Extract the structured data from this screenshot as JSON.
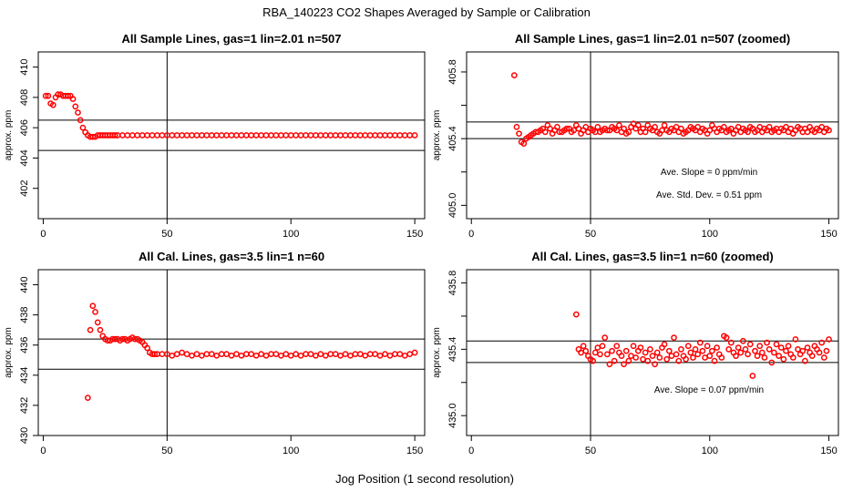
{
  "figure": {
    "title": "RBA_140223  CO2 Shapes Averaged by Sample or Calibration",
    "xlabel": "Jog Position (1 second resolution)"
  },
  "colors": {
    "points": "#ff0000",
    "axes": "#000000",
    "background": "#ffffff"
  },
  "chart_data": [
    {
      "type": "scatter",
      "title": "All Sample Lines, gas=1 lin=2.01 n=507",
      "ylabel": "approx. ppm",
      "xlim": [
        -2,
        154
      ],
      "ylim": [
        400,
        411
      ],
      "xticks": [
        0,
        50,
        100,
        150
      ],
      "yticks": [
        402,
        404,
        406,
        408,
        410
      ],
      "vline": 50,
      "hlines": [
        404.5,
        406.5
      ],
      "series": [
        {
          "x": [
            1,
            2,
            3,
            4,
            5,
            6,
            7,
            8,
            9,
            10,
            11,
            12,
            13,
            14,
            15,
            16,
            17,
            18,
            19,
            20,
            21,
            22,
            23,
            24,
            25,
            26,
            27,
            28,
            29,
            30,
            32,
            34,
            36,
            38,
            40,
            42,
            44,
            46,
            48,
            50,
            52,
            54,
            56,
            58,
            60,
            62,
            64,
            66,
            68,
            70,
            72,
            74,
            76,
            78,
            80,
            82,
            84,
            86,
            88,
            90,
            92,
            94,
            96,
            98,
            100,
            102,
            104,
            106,
            108,
            110,
            112,
            114,
            116,
            118,
            120,
            122,
            124,
            126,
            128,
            130,
            132,
            134,
            136,
            138,
            140,
            142,
            144,
            146,
            148,
            150
          ],
          "y": [
            408.1,
            408.1,
            407.6,
            407.5,
            408,
            408.2,
            408.2,
            408.1,
            408.1,
            408.1,
            408.1,
            407.9,
            407.4,
            407,
            406.5,
            406,
            405.7,
            405.5,
            405.4,
            405.4,
            405.4,
            405.5,
            405.5,
            405.5,
            405.5,
            405.5,
            405.5,
            405.5,
            405.5,
            405.5,
            405.5,
            405.5,
            405.5,
            405.5,
            405.5,
            405.5,
            405.5,
            405.5,
            405.5,
            405.5,
            405.5,
            405.5,
            405.5,
            405.5,
            405.5,
            405.5,
            405.5,
            405.5,
            405.5,
            405.5,
            405.5,
            405.5,
            405.5,
            405.5,
            405.5,
            405.5,
            405.5,
            405.5,
            405.5,
            405.5,
            405.5,
            405.5,
            405.5,
            405.5,
            405.5,
            405.5,
            405.5,
            405.5,
            405.5,
            405.5,
            405.5,
            405.5,
            405.5,
            405.5,
            405.5,
            405.5,
            405.5,
            405.5,
            405.5,
            405.5,
            405.5,
            405.5,
            405.5,
            405.5,
            405.5,
            405.5,
            405.5,
            405.5,
            405.5,
            405.5
          ]
        }
      ],
      "annotations": []
    },
    {
      "type": "scatter",
      "title": "All Sample Lines, gas=1 lin=2.01 n=507 (zoomed)",
      "ylabel": "approx. ppm",
      "xlim": [
        -2,
        154
      ],
      "ylim": [
        404.92,
        405.92
      ],
      "xticks": [
        0,
        50,
        100,
        150
      ],
      "yticks": [
        405.0,
        405.4,
        405.8
      ],
      "hidden_yticks": [
        405.2,
        405.6
      ],
      "vline": 50,
      "hlines": [
        405.4,
        405.5
      ],
      "series": [
        {
          "x": [
            18,
            19,
            20,
            21,
            22,
            23,
            24,
            25,
            26,
            27,
            28,
            29,
            30,
            31,
            32,
            33,
            34,
            35,
            36,
            37,
            38,
            39,
            40,
            41,
            42,
            43,
            44,
            45,
            46,
            47,
            48,
            49,
            50,
            51,
            52,
            53,
            54,
            55,
            56,
            57,
            58,
            59,
            60,
            61,
            62,
            63,
            64,
            65,
            66,
            67,
            68,
            69,
            70,
            71,
            72,
            73,
            74,
            75,
            76,
            77,
            78,
            79,
            80,
            81,
            82,
            83,
            84,
            85,
            86,
            87,
            88,
            89,
            90,
            91,
            92,
            93,
            94,
            95,
            96,
            97,
            98,
            99,
            100,
            101,
            102,
            103,
            104,
            105,
            106,
            107,
            108,
            109,
            110,
            111,
            112,
            113,
            114,
            115,
            116,
            117,
            118,
            119,
            120,
            121,
            122,
            123,
            124,
            125,
            126,
            127,
            128,
            129,
            130,
            131,
            132,
            133,
            134,
            135,
            136,
            137,
            138,
            139,
            140,
            141,
            142,
            143,
            144,
            145,
            146,
            147,
            148,
            149,
            150
          ],
          "y": [
            405.78,
            405.47,
            405.43,
            405.38,
            405.37,
            405.4,
            405.41,
            405.42,
            405.43,
            405.44,
            405.44,
            405.45,
            405.46,
            405.44,
            405.48,
            405.46,
            405.43,
            405.45,
            405.47,
            405.44,
            405.44,
            405.45,
            405.46,
            405.46,
            405.44,
            405.45,
            405.48,
            405.46,
            405.43,
            405.45,
            405.47,
            405.44,
            405.46,
            405.45,
            405.44,
            405.47,
            405.44,
            405.45,
            405.46,
            405.45,
            405.45,
            405.47,
            405.46,
            405.45,
            405.48,
            405.44,
            405.46,
            405.43,
            405.44,
            405.47,
            405.49,
            405.46,
            405.48,
            405.44,
            405.46,
            405.44,
            405.48,
            405.46,
            405.45,
            405.47,
            405.44,
            405.43,
            405.45,
            405.48,
            405.45,
            405.44,
            405.46,
            405.45,
            405.47,
            405.44,
            405.46,
            405.43,
            405.44,
            405.45,
            405.47,
            405.46,
            405.45,
            405.47,
            405.44,
            405.46,
            405.45,
            405.43,
            405.45,
            405.48,
            405.46,
            405.44,
            405.46,
            405.45,
            405.47,
            405.44,
            405.45,
            405.46,
            405.43,
            405.45,
            405.47,
            405.44,
            405.46,
            405.45,
            405.44,
            405.47,
            405.46,
            405.44,
            405.45,
            405.47,
            405.44,
            405.46,
            405.45,
            405.47,
            405.44,
            405.45,
            405.46,
            405.44,
            405.46,
            405.45,
            405.47,
            405.44,
            405.46,
            405.43,
            405.45,
            405.47,
            405.46,
            405.44,
            405.46,
            405.44,
            405.47,
            405.45,
            405.44,
            405.46,
            405.45,
            405.47,
            405.44,
            405.46,
            405.45
          ]
        }
      ],
      "annotations": [
        "Ave. Slope =  0  ppm/min",
        "Ave. Std. Dev. =  0.51  ppm"
      ]
    },
    {
      "type": "scatter",
      "title": "All Cal. Lines, gas=3.5 lin=1 n=60",
      "ylabel": "approx. ppm",
      "xlim": [
        -2,
        154
      ],
      "ylim": [
        430,
        441
      ],
      "xticks": [
        0,
        50,
        100,
        150
      ],
      "yticks": [
        430,
        432,
        434,
        436,
        438,
        440
      ],
      "vline": 50,
      "hlines": [
        434.4,
        436.4
      ],
      "series": [
        {
          "x": [
            18,
            19,
            20,
            21,
            22,
            23,
            24,
            25,
            26,
            27,
            28,
            29,
            30,
            31,
            32,
            33,
            34,
            35,
            36,
            37,
            38,
            39,
            40,
            41,
            42,
            43,
            44,
            45,
            46,
            48,
            50,
            52,
            54,
            56,
            58,
            60,
            62,
            64,
            66,
            68,
            70,
            72,
            74,
            76,
            78,
            80,
            82,
            84,
            86,
            88,
            90,
            92,
            94,
            96,
            98,
            100,
            102,
            104,
            106,
            108,
            110,
            112,
            114,
            116,
            118,
            120,
            122,
            124,
            126,
            128,
            130,
            132,
            134,
            136,
            138,
            140,
            142,
            144,
            146,
            148,
            150
          ],
          "y": [
            432.5,
            437,
            438.6,
            438.2,
            437.5,
            437,
            436.6,
            436.4,
            436.3,
            436.3,
            436.4,
            436.4,
            436.4,
            436.3,
            436.4,
            436.4,
            436.3,
            436.4,
            436.5,
            436.4,
            436.4,
            436.3,
            436.2,
            436,
            435.8,
            435.5,
            435.4,
            435.4,
            435.4,
            435.4,
            435.4,
            435.3,
            435.4,
            435.5,
            435.4,
            435.3,
            435.4,
            435.3,
            435.4,
            435.4,
            435.3,
            435.4,
            435.4,
            435.3,
            435.4,
            435.3,
            435.4,
            435.4,
            435.3,
            435.4,
            435.3,
            435.4,
            435.4,
            435.3,
            435.4,
            435.3,
            435.4,
            435.3,
            435.4,
            435.4,
            435.3,
            435.4,
            435.3,
            435.4,
            435.4,
            435.3,
            435.4,
            435.3,
            435.4,
            435.4,
            435.3,
            435.4,
            435.4,
            435.3,
            435.4,
            435.3,
            435.4,
            435.4,
            435.3,
            435.4,
            435.5
          ]
        }
      ],
      "annotations": []
    },
    {
      "type": "scatter",
      "title": "All Cal. Lines, gas=3.5 lin=1 n=60 (zoomed)",
      "ylabel": "approx. ppm",
      "xlim": [
        -2,
        154
      ],
      "ylim": [
        434.88,
        435.88
      ],
      "xticks": [
        0,
        50,
        100,
        150
      ],
      "yticks": [
        435.0,
        435.4,
        435.8
      ],
      "hidden_yticks": [
        435.2,
        435.6
      ],
      "vline": 50,
      "hlines": [
        435.32,
        435.45
      ],
      "series": [
        {
          "x": [
            44,
            45,
            46,
            47,
            48,
            49,
            50,
            51,
            52,
            53,
            54,
            55,
            56,
            57,
            58,
            59,
            60,
            61,
            62,
            63,
            64,
            65,
            66,
            67,
            68,
            69,
            70,
            71,
            72,
            73,
            74,
            75,
            76,
            77,
            78,
            79,
            80,
            81,
            82,
            83,
            84,
            85,
            86,
            87,
            88,
            89,
            90,
            91,
            92,
            93,
            94,
            95,
            96,
            97,
            98,
            99,
            100,
            101,
            102,
            103,
            104,
            105,
            106,
            107,
            108,
            109,
            110,
            111,
            112,
            113,
            114,
            115,
            116,
            117,
            118,
            119,
            120,
            121,
            122,
            123,
            124,
            125,
            126,
            127,
            128,
            129,
            130,
            131,
            132,
            133,
            134,
            135,
            136,
            137,
            138,
            139,
            140,
            141,
            142,
            143,
            144,
            145,
            146,
            147,
            148,
            149,
            150
          ],
          "y": [
            435.61,
            435.4,
            435.38,
            435.42,
            435.39,
            435.36,
            435.34,
            435.33,
            435.38,
            435.41,
            435.37,
            435.42,
            435.47,
            435.37,
            435.31,
            435.39,
            435.33,
            435.42,
            435.38,
            435.36,
            435.31,
            435.39,
            435.33,
            435.36,
            435.42,
            435.35,
            435.39,
            435.41,
            435.34,
            435.38,
            435.33,
            435.4,
            435.36,
            435.31,
            435.38,
            435.35,
            435.41,
            435.43,
            435.34,
            435.39,
            435.36,
            435.47,
            435.37,
            435.33,
            435.4,
            435.36,
            435.34,
            435.42,
            435.38,
            435.35,
            435.4,
            435.37,
            435.44,
            435.39,
            435.35,
            435.42,
            435.36,
            435.39,
            435.33,
            435.41,
            435.37,
            435.35,
            435.48,
            435.47,
            435.4,
            435.44,
            435.38,
            435.36,
            435.41,
            435.38,
            435.45,
            435.4,
            435.37,
            435.43,
            435.24,
            435.39,
            435.36,
            435.42,
            435.38,
            435.35,
            435.44,
            435.4,
            435.32,
            435.38,
            435.43,
            435.36,
            435.41,
            435.34,
            435.39,
            435.42,
            435.37,
            435.35,
            435.46,
            435.4,
            435.37,
            435.39,
            435.33,
            435.41,
            435.38,
            435.36,
            435.42,
            435.4,
            435.38,
            435.44,
            435.35,
            435.39,
            435.46
          ]
        }
      ],
      "annotations": [
        "Ave. Slope =  0.07  ppm/min"
      ]
    }
  ]
}
